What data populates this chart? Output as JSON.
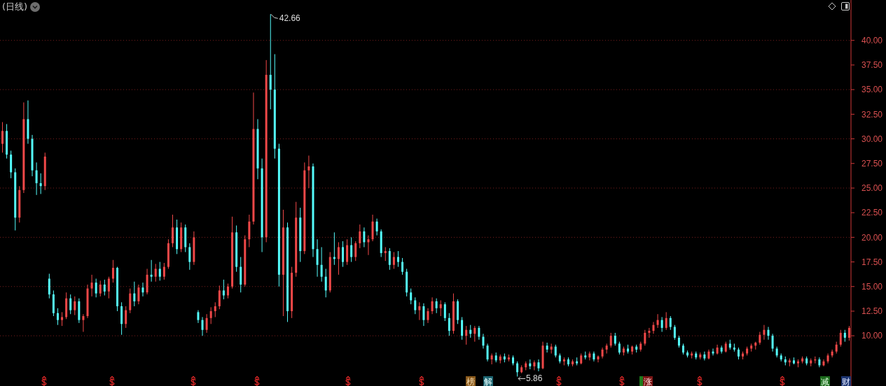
{
  "chart_data": {
    "type": "candlestick",
    "title": "(日线)",
    "categories": [
      null,
      null,
      null,
      null,
      null,
      null,
      null,
      null,
      null,
      null,
      null,
      null,
      null,
      null,
      null,
      null,
      null,
      null,
      null,
      null,
      null,
      null,
      null,
      null,
      null,
      null,
      null,
      null,
      null,
      null,
      null,
      null,
      null,
      null,
      null,
      null,
      null,
      null,
      null,
      null,
      null,
      null,
      null,
      null,
      null,
      null,
      null,
      null,
      null,
      null,
      null,
      null,
      null,
      null,
      null,
      null,
      null,
      null,
      null,
      null,
      null,
      null,
      null,
      null,
      null,
      null,
      null,
      null,
      null,
      null,
      null,
      null,
      null,
      null,
      null,
      null,
      null,
      null,
      null,
      null,
      null,
      null,
      null,
      null,
      null,
      null,
      null,
      null,
      null,
      null,
      null,
      null,
      null,
      null,
      null,
      null,
      null,
      null,
      null,
      null,
      null,
      null,
      null,
      null,
      null,
      null,
      null,
      null,
      null,
      null,
      null,
      null,
      null,
      null,
      null,
      null,
      null,
      null,
      null,
      null,
      null,
      null,
      null,
      null,
      null,
      null,
      null,
      null,
      null,
      null,
      null,
      null,
      null,
      null,
      null,
      null,
      null,
      null,
      null,
      null,
      null,
      null,
      null,
      null,
      null,
      null,
      null,
      null,
      null,
      null,
      null,
      null,
      null,
      null,
      null,
      null,
      null,
      null,
      null,
      null,
      null,
      null,
      null,
      null,
      null,
      null,
      null,
      null,
      null,
      null,
      null,
      null,
      null,
      null,
      null,
      null,
      null,
      null,
      null,
      null,
      null,
      null,
      null,
      null,
      null,
      null,
      null,
      null,
      null,
      null,
      null,
      null,
      null,
      null,
      null,
      null,
      null,
      null,
      null,
      null
    ],
    "ohlc": [
      [
        29.5,
        31.7,
        28.6,
        30.8
      ],
      [
        30.8,
        31.5,
        28.0,
        28.4
      ],
      [
        28.4,
        28.8,
        26.0,
        26.6
      ],
      [
        26.6,
        27.0,
        20.7,
        22.0
      ],
      [
        22.0,
        25.2,
        21.5,
        24.8
      ],
      [
        24.8,
        33.7,
        24.5,
        32.0
      ],
      [
        32.0,
        33.9,
        29.5,
        30.0
      ],
      [
        30.0,
        30.4,
        26.2,
        26.8
      ],
      [
        26.8,
        27.6,
        24.3,
        25.5
      ],
      [
        25.5,
        26.5,
        24.4,
        25.2
      ],
      [
        25.2,
        28.6,
        24.8,
        28.2
      ],
      [
        15.8,
        16.3,
        13.8,
        14.2
      ],
      [
        14.2,
        14.6,
        12.0,
        12.3
      ],
      [
        12.3,
        12.8,
        11.1,
        11.6
      ],
      [
        11.6,
        12.4,
        11.0,
        11.9
      ],
      [
        11.9,
        14.4,
        11.7,
        13.8
      ],
      [
        13.8,
        14.2,
        12.2,
        12.6
      ],
      [
        12.6,
        14.0,
        12.1,
        13.5
      ],
      [
        13.5,
        13.8,
        11.3,
        11.6
      ],
      [
        11.6,
        12.2,
        10.4,
        12.0
      ],
      [
        12.0,
        15.2,
        11.8,
        14.8
      ],
      [
        14.8,
        16.2,
        14.0,
        15.4
      ],
      [
        15.4,
        15.8,
        13.9,
        14.3
      ],
      [
        14.3,
        15.6,
        14.0,
        15.2
      ],
      [
        15.2,
        15.7,
        14.1,
        14.5
      ],
      [
        14.5,
        16.0,
        13.8,
        15.8
      ],
      [
        15.8,
        17.7,
        15.4,
        16.9
      ],
      [
        16.9,
        17.0,
        12.5,
        13.0
      ],
      [
        13.0,
        13.4,
        10.1,
        11.2
      ],
      [
        11.2,
        13.0,
        10.8,
        12.6
      ],
      [
        12.6,
        14.8,
        12.3,
        14.3
      ],
      [
        14.3,
        15.5,
        13.0,
        13.5
      ],
      [
        13.5,
        15.2,
        13.2,
        14.9
      ],
      [
        14.9,
        15.4,
        14.0,
        14.4
      ],
      [
        14.4,
        16.8,
        14.2,
        16.2
      ],
      [
        16.2,
        17.7,
        15.5,
        16.0
      ],
      [
        16.0,
        17.3,
        15.5,
        16.8
      ],
      [
        16.8,
        17.5,
        15.6,
        16.0
      ],
      [
        16.0,
        17.4,
        15.7,
        17.0
      ],
      [
        17.0,
        19.8,
        16.8,
        19.4
      ],
      [
        19.4,
        22.3,
        19.0,
        21.0
      ],
      [
        21.0,
        21.8,
        18.3,
        18.8
      ],
      [
        18.8,
        21.5,
        18.5,
        21.0
      ],
      [
        21.0,
        21.3,
        18.5,
        19.0
      ],
      [
        19.0,
        19.4,
        16.7,
        17.5
      ],
      [
        17.5,
        20.6,
        17.2,
        20.0
      ],
      [
        12.4,
        12.6,
        11.3,
        11.6
      ],
      [
        11.6,
        11.9,
        10.0,
        10.6
      ],
      [
        10.6,
        12.2,
        10.3,
        11.8
      ],
      [
        11.8,
        12.9,
        11.2,
        12.5
      ],
      [
        12.5,
        13.4,
        11.9,
        13.0
      ],
      [
        13.0,
        15.1,
        12.7,
        14.6
      ],
      [
        14.6,
        15.7,
        13.7,
        14.1
      ],
      [
        14.1,
        15.3,
        13.8,
        15.0
      ],
      [
        15.0,
        22.1,
        14.8,
        20.5
      ],
      [
        20.5,
        21.2,
        16.5,
        17.0
      ],
      [
        17.0,
        18.0,
        14.4,
        15.2
      ],
      [
        15.2,
        20.2,
        15.0,
        19.8
      ],
      [
        19.8,
        22.3,
        19.0,
        21.6
      ],
      [
        21.6,
        34.7,
        21.3,
        31.0
      ],
      [
        31.0,
        32.0,
        25.9,
        27.0
      ],
      [
        27.0,
        28.0,
        18.5,
        20.0
      ],
      [
        20.0,
        38.0,
        19.5,
        36.5
      ],
      [
        36.5,
        42.66,
        33.0,
        35.0
      ],
      [
        35.0,
        38.6,
        28.0,
        29.0
      ],
      [
        29.0,
        29.5,
        15.0,
        16.2
      ],
      [
        16.2,
        22.8,
        12.0,
        21.0
      ],
      [
        21.0,
        21.5,
        11.4,
        12.5
      ],
      [
        12.5,
        17.0,
        11.8,
        16.4
      ],
      [
        16.4,
        23.6,
        16.0,
        22.0
      ],
      [
        22.0,
        23.0,
        17.5,
        18.6
      ],
      [
        18.6,
        27.6,
        18.3,
        26.8
      ],
      [
        26.8,
        28.3,
        25.0,
        27.2
      ],
      [
        27.2,
        27.5,
        18.0,
        18.8
      ],
      [
        18.8,
        19.8,
        16.0,
        17.2
      ],
      [
        17.2,
        19.0,
        15.5,
        16.0
      ],
      [
        16.0,
        16.8,
        13.9,
        14.6
      ],
      [
        14.6,
        18.5,
        14.4,
        18.0
      ],
      [
        18.0,
        20.5,
        17.2,
        17.8
      ],
      [
        17.8,
        19.5,
        16.2,
        19.0
      ],
      [
        19.0,
        19.6,
        17.0,
        17.5
      ],
      [
        17.5,
        19.8,
        17.2,
        19.2
      ],
      [
        19.2,
        20.0,
        17.5,
        18.0
      ],
      [
        18.0,
        19.6,
        17.6,
        19.4
      ],
      [
        19.4,
        21.3,
        18.9,
        20.6
      ],
      [
        20.6,
        21.0,
        19.0,
        19.5
      ],
      [
        19.5,
        20.2,
        18.2,
        19.8
      ],
      [
        19.8,
        22.3,
        19.6,
        21.6
      ],
      [
        21.6,
        21.9,
        20.2,
        20.6
      ],
      [
        20.6,
        20.8,
        18.0,
        18.4
      ],
      [
        18.4,
        19.0,
        17.6,
        18.6
      ],
      [
        18.6,
        18.9,
        16.7,
        17.2
      ],
      [
        17.2,
        18.5,
        16.8,
        18.0
      ],
      [
        18.0,
        18.6,
        17.0,
        17.5
      ],
      [
        17.5,
        17.9,
        16.2,
        16.5
      ],
      [
        16.5,
        16.8,
        14.0,
        14.4
      ],
      [
        14.4,
        14.8,
        13.2,
        13.6
      ],
      [
        13.6,
        13.9,
        12.2,
        12.6
      ],
      [
        12.6,
        13.4,
        11.6,
        13.0
      ],
      [
        13.0,
        13.3,
        11.0,
        11.6
      ],
      [
        11.6,
        12.8,
        11.3,
        12.5
      ],
      [
        12.5,
        13.9,
        12.2,
        13.5
      ],
      [
        13.5,
        13.8,
        12.3,
        12.8
      ],
      [
        12.8,
        13.6,
        12.0,
        13.2
      ],
      [
        13.2,
        13.4,
        11.5,
        11.8
      ],
      [
        11.8,
        12.3,
        10.0,
        10.5
      ],
      [
        10.5,
        14.3,
        10.2,
        13.5
      ],
      [
        13.5,
        13.7,
        11.2,
        11.6
      ],
      [
        11.6,
        11.9,
        9.6,
        10.0
      ],
      [
        10.0,
        11.0,
        9.1,
        10.6
      ],
      [
        10.6,
        11.1,
        9.8,
        10.2
      ],
      [
        10.2,
        11.0,
        9.4,
        10.8
      ],
      [
        10.8,
        11.0,
        9.6,
        9.9
      ],
      [
        9.9,
        10.2,
        8.7,
        9.0
      ],
      [
        9.0,
        9.2,
        7.4,
        7.6
      ],
      [
        7.6,
        8.2,
        7.1,
        8.0
      ],
      [
        8.0,
        8.3,
        7.3,
        7.5
      ],
      [
        7.5,
        8.1,
        7.2,
        7.9
      ],
      [
        7.9,
        8.2,
        7.3,
        7.6
      ],
      [
        7.6,
        8.1,
        7.4,
        7.8
      ],
      [
        7.8,
        8.0,
        7.0,
        7.2
      ],
      [
        7.2,
        7.4,
        5.86,
        6.3
      ],
      [
        6.3,
        7.0,
        6.2,
        6.8
      ],
      [
        6.8,
        7.4,
        6.5,
        7.2
      ],
      [
        7.2,
        7.6,
        6.6,
        6.9
      ],
      [
        6.9,
        7.5,
        6.5,
        7.3
      ],
      [
        7.3,
        7.6,
        6.4,
        6.7
      ],
      [
        6.7,
        9.4,
        6.6,
        9.0
      ],
      [
        9.0,
        9.3,
        8.3,
        8.6
      ],
      [
        8.6,
        9.2,
        8.2,
        8.9
      ],
      [
        8.9,
        9.1,
        7.8,
        8.0
      ],
      [
        8.0,
        8.2,
        7.2,
        7.4
      ],
      [
        7.4,
        7.8,
        7.0,
        7.6
      ],
      [
        7.6,
        7.8,
        6.9,
        7.1
      ],
      [
        7.1,
        7.6,
        6.9,
        7.4
      ],
      [
        7.4,
        7.8,
        7.0,
        7.2
      ],
      [
        7.2,
        8.2,
        7.1,
        8.0
      ],
      [
        8.0,
        8.4,
        7.6,
        7.8
      ],
      [
        7.8,
        8.4,
        7.5,
        8.2
      ],
      [
        8.2,
        8.4,
        7.4,
        7.6
      ],
      [
        7.6,
        8.0,
        7.3,
        7.9
      ],
      [
        7.9,
        8.8,
        7.7,
        8.6
      ],
      [
        8.6,
        9.2,
        8.2,
        9.0
      ],
      [
        9.0,
        10.3,
        8.8,
        10.0
      ],
      [
        10.0,
        10.3,
        9.0,
        9.2
      ],
      [
        9.2,
        9.4,
        8.1,
        8.3
      ],
      [
        8.3,
        8.9,
        8.0,
        8.7
      ],
      [
        8.7,
        9.1,
        8.2,
        8.4
      ],
      [
        8.4,
        9.0,
        8.1,
        8.9
      ],
      [
        8.9,
        9.1,
        8.3,
        8.6
      ],
      [
        8.6,
        9.4,
        8.4,
        9.2
      ],
      [
        9.2,
        10.6,
        9.0,
        10.3
      ],
      [
        10.3,
        10.8,
        9.8,
        10.5
      ],
      [
        10.5,
        11.4,
        10.2,
        11.1
      ],
      [
        11.1,
        12.2,
        10.8,
        11.6
      ],
      [
        11.6,
        11.9,
        10.4,
        10.8
      ],
      [
        10.8,
        12.4,
        10.6,
        11.8
      ],
      [
        11.8,
        12.0,
        10.6,
        10.9
      ],
      [
        10.9,
        11.1,
        9.6,
        9.8
      ],
      [
        9.8,
        10.0,
        8.8,
        9.0
      ],
      [
        9.0,
        9.2,
        8.1,
        8.3
      ],
      [
        8.3,
        8.5,
        7.8,
        8.0
      ],
      [
        8.0,
        8.4,
        7.7,
        8.2
      ],
      [
        8.2,
        8.4,
        7.6,
        7.8
      ],
      [
        7.8,
        8.3,
        7.6,
        8.1
      ],
      [
        8.1,
        8.4,
        7.5,
        7.7
      ],
      [
        7.7,
        8.6,
        7.6,
        8.4
      ],
      [
        8.4,
        8.7,
        8.0,
        8.2
      ],
      [
        8.2,
        9.1,
        8.1,
        8.8
      ],
      [
        8.8,
        9.0,
        8.2,
        8.4
      ],
      [
        8.4,
        9.4,
        8.3,
        9.2
      ],
      [
        9.2,
        9.6,
        8.6,
        8.8
      ],
      [
        8.8,
        9.2,
        8.4,
        8.6
      ],
      [
        8.6,
        8.8,
        7.6,
        7.9
      ],
      [
        7.9,
        8.4,
        7.6,
        8.2
      ],
      [
        8.2,
        8.9,
        8.0,
        8.7
      ],
      [
        8.7,
        9.2,
        8.4,
        9.0
      ],
      [
        9.0,
        9.4,
        8.6,
        9.3
      ],
      [
        9.3,
        10.4,
        9.1,
        10.1
      ],
      [
        10.1,
        11.1,
        9.6,
        10.6
      ],
      [
        10.6,
        10.9,
        9.6,
        10.0
      ],
      [
        10.0,
        10.2,
        8.4,
        8.7
      ],
      [
        8.7,
        8.9,
        7.8,
        8.0
      ],
      [
        8.0,
        8.2,
        7.4,
        7.6
      ],
      [
        7.6,
        7.9,
        7.0,
        7.3
      ],
      [
        7.3,
        7.7,
        6.9,
        7.5
      ],
      [
        7.5,
        7.8,
        7.1,
        7.2
      ],
      [
        7.2,
        7.6,
        6.8,
        7.4
      ],
      [
        7.4,
        7.9,
        7.2,
        7.7
      ],
      [
        7.7,
        7.9,
        7.0,
        7.2
      ],
      [
        7.2,
        7.7,
        6.9,
        7.5
      ],
      [
        7.5,
        7.9,
        7.2,
        7.6
      ],
      [
        7.6,
        7.8,
        6.8,
        7.0
      ],
      [
        7.0,
        7.6,
        6.9,
        7.4
      ],
      [
        7.4,
        8.2,
        7.2,
        8.0
      ],
      [
        8.0,
        8.6,
        7.8,
        8.4
      ],
      [
        8.4,
        9.4,
        8.2,
        9.1
      ],
      [
        9.1,
        10.6,
        8.9,
        10.3
      ],
      [
        10.3,
        10.6,
        9.4,
        9.8
      ],
      [
        9.8,
        11.0,
        9.5,
        10.8
      ]
    ],
    "colors": [
      "#f04848",
      "#54fcfc",
      "#54fcfc",
      "#54fcfc",
      "#f04848",
      "#f04848",
      "#54fcfc",
      "#54fcfc",
      "#54fcfc",
      "#54fcfc",
      "#f04848",
      "#54fcfc",
      "#54fcfc",
      "#54fcfc",
      "#f04848",
      "#f04848",
      "#54fcfc",
      "#f04848",
      "#54fcfc",
      "#f04848",
      "#f04848",
      "#f04848",
      "#54fcfc",
      "#f04848",
      "#54fcfc",
      "#f04848",
      "#f04848",
      "#54fcfc",
      "#54fcfc",
      "#f04848",
      "#f04848",
      "#54fcfc",
      "#f04848",
      "#54fcfc",
      "#f04848",
      "#54fcfc",
      "#f04848",
      "#54fcfc",
      "#f04848",
      "#f04848",
      "#f04848",
      "#54fcfc",
      "#f04848",
      "#54fcfc",
      "#54fcfc",
      "#f04848",
      "#54fcfc",
      "#54fcfc",
      "#f04848",
      "#f04848",
      "#f04848",
      "#f04848",
      "#54fcfc",
      "#f04848",
      "#f04848",
      "#54fcfc",
      "#54fcfc",
      "#f04848",
      "#f04848",
      "#f04848",
      "#54fcfc",
      "#54fcfc",
      "#f04848",
      "#54fcfc",
      "#54fcfc",
      "#54fcfc",
      "#f04848",
      "#54fcfc",
      "#f04848",
      "#f04848",
      "#54fcfc",
      "#f04848",
      "#f04848",
      "#54fcfc",
      "#54fcfc",
      "#54fcfc",
      "#54fcfc",
      "#f04848",
      "#54fcfc",
      "#f04848",
      "#54fcfc",
      "#f04848",
      "#54fcfc",
      "#f04848",
      "#f04848",
      "#54fcfc",
      "#f04848",
      "#f04848",
      "#54fcfc",
      "#54fcfc",
      "#f04848",
      "#54fcfc",
      "#f04848",
      "#54fcfc",
      "#54fcfc",
      "#54fcfc",
      "#54fcfc",
      "#54fcfc",
      "#f04848",
      "#54fcfc",
      "#f04848",
      "#f04848",
      "#54fcfc",
      "#f04848",
      "#54fcfc",
      "#54fcfc",
      "#f04848",
      "#54fcfc",
      "#54fcfc",
      "#f04848",
      "#54fcfc",
      "#f04848",
      "#54fcfc",
      "#54fcfc",
      "#54fcfc",
      "#f04848",
      "#54fcfc",
      "#f04848",
      "#54fcfc",
      "#f04848",
      "#54fcfc",
      "#54fcfc",
      "#f04848",
      "#f04848",
      "#54fcfc",
      "#f04848",
      "#54fcfc",
      "#f04848",
      "#54fcfc",
      "#f04848",
      "#54fcfc",
      "#54fcfc",
      "#f04848",
      "#54fcfc",
      "#f04848",
      "#54fcfc",
      "#f04848",
      "#54fcfc",
      "#f04848",
      "#54fcfc",
      "#f04848",
      "#f04848",
      "#f04848",
      "#f04848",
      "#54fcfc",
      "#54fcfc",
      "#f04848",
      "#54fcfc",
      "#f04848",
      "#54fcfc",
      "#f04848",
      "#f04848",
      "#f04848",
      "#f04848",
      "#f04848",
      "#54fcfc",
      "#f04848",
      "#54fcfc",
      "#54fcfc",
      "#54fcfc",
      "#54fcfc",
      "#54fcfc",
      "#f04848",
      "#54fcfc",
      "#f04848",
      "#54fcfc",
      "#f04848",
      "#54fcfc",
      "#f04848",
      "#54fcfc",
      "#f04848",
      "#54fcfc",
      "#54fcfc",
      "#54fcfc",
      "#f04848",
      "#f04848",
      "#f04848",
      "#f04848",
      "#f04848",
      "#f04848",
      "#54fcfc",
      "#54fcfc",
      "#54fcfc",
      "#54fcfc",
      "#54fcfc",
      "#f04848",
      "#54fcfc",
      "#f04848",
      "#f04848",
      "#54fcfc",
      "#f04848",
      "#f04848",
      "#54fcfc",
      "#f04848",
      "#f04848",
      "#f04848",
      "#f04848",
      "#f04848",
      "#54fcfc",
      "#f04848"
    ],
    "ylim": [
      4.9,
      44.1
    ],
    "yticks": [
      {
        "value": 10,
        "label": "10.00"
      },
      {
        "value": 12.5,
        "label": "12.50"
      },
      {
        "value": 15,
        "label": "15.00"
      },
      {
        "value": 17.5,
        "label": "17.50"
      },
      {
        "value": 20,
        "label": "20.00"
      },
      {
        "value": 22.5,
        "label": "22.50"
      },
      {
        "value": 25,
        "label": "25.00"
      },
      {
        "value": 27.5,
        "label": "27.50"
      },
      {
        "value": 30,
        "label": "30.00"
      },
      {
        "value": 32.5,
        "label": "32.50"
      },
      {
        "value": 35,
        "label": "35.00"
      },
      {
        "value": 37.5,
        "label": "37.50"
      },
      {
        "value": 40,
        "label": "40.00"
      }
    ],
    "grid": "y",
    "tick_labels": "y",
    "annotations": [
      "42.66",
      "5.86",
      "榜",
      "解",
      "涨",
      "减",
      "财"
    ]
  }
}
